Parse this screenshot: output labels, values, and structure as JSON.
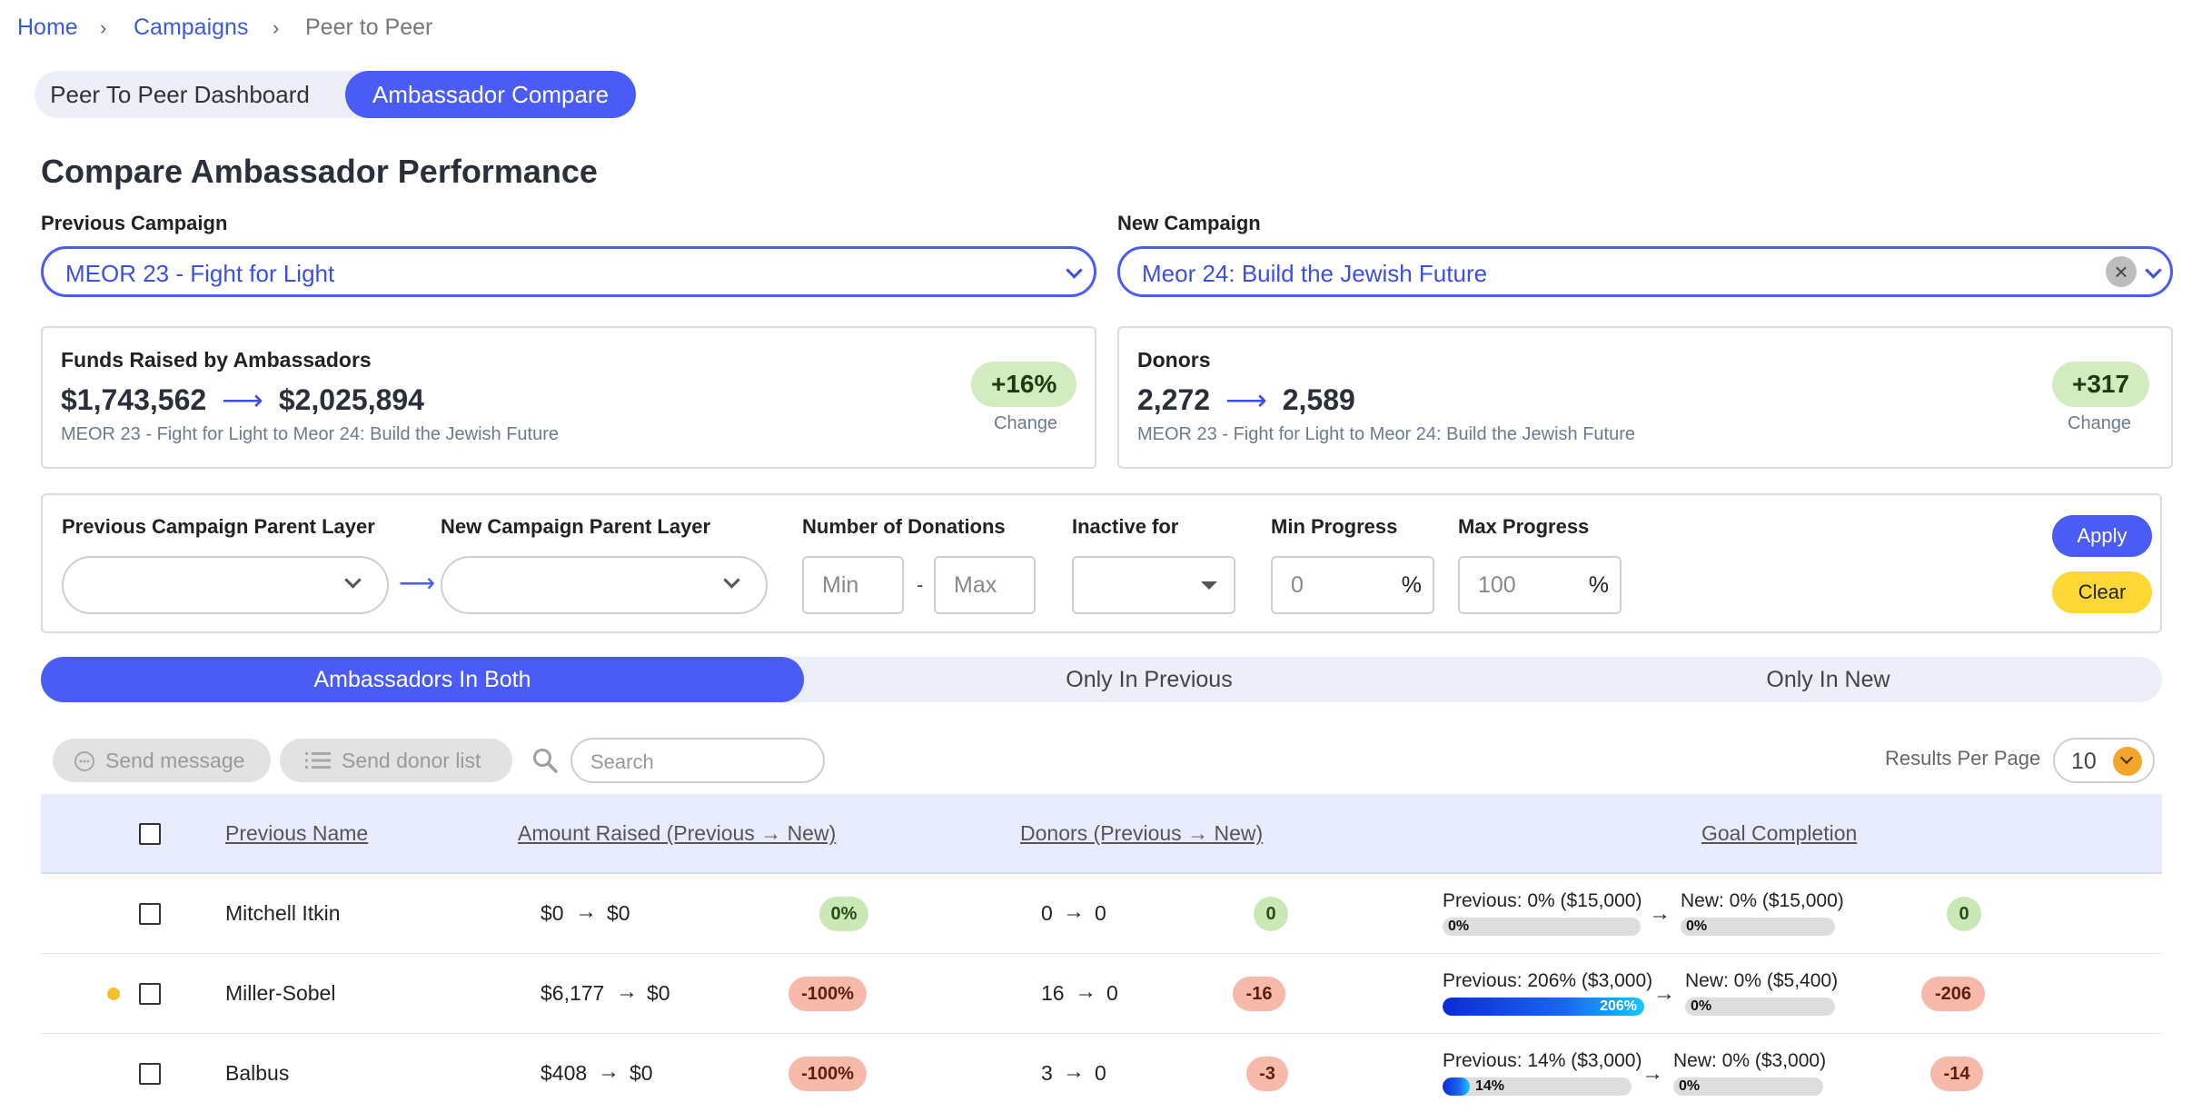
{
  "breadcrumb": {
    "home": "Home",
    "campaigns": "Campaigns",
    "current": "Peer to Peer",
    "sep": "›"
  },
  "top_tabs": [
    {
      "label": "Peer To Peer Dashboard"
    },
    {
      "label": "Ambassador Compare"
    }
  ],
  "page_title": "Compare Ambassador Performance",
  "campaigns": {
    "previous_label": "Previous Campaign",
    "previous_value": "MEOR 23 - Fight for Light",
    "new_label": "New Campaign",
    "new_value": "Meor 24: Build the Jewish Future",
    "clear_glyph": "×"
  },
  "cards": {
    "funds": {
      "title": "Funds Raised by Ambassadors",
      "prev": "$1,743,562",
      "new": "$2,025,894",
      "arrow": "⟶",
      "sub": "MEOR 23 - Fight for Light to Meor 24: Build the Jewish Future",
      "badge": "+16%",
      "change_label": "Change"
    },
    "donors": {
      "title": "Donors",
      "prev": "2,272",
      "new": "2,589",
      "arrow": "⟶",
      "sub": "MEOR 23 - Fight for Light to Meor 24: Build the Jewish Future",
      "badge": "+317",
      "change_label": "Change"
    }
  },
  "filters": {
    "prev_parent_label": "Previous Campaign Parent Layer",
    "new_parent_label": "New Campaign Parent Layer",
    "layer_arrow": "⟶",
    "donations_label": "Number of Donations",
    "min_placeholder": "Min",
    "max_placeholder": "Max",
    "dash": "-",
    "inactive_label": "Inactive for",
    "min_progress_label": "Min Progress",
    "min_progress_placeholder": "0",
    "max_progress_label": "Max Progress",
    "max_progress_placeholder": "100",
    "pct": "%",
    "apply": "Apply",
    "clear": "Clear"
  },
  "segment_tabs": [
    {
      "label": "Ambassadors In Both"
    },
    {
      "label": "Only In Previous"
    },
    {
      "label": "Only In New"
    }
  ],
  "toolbar": {
    "send_message": "Send message",
    "send_donor_list": "Send donor list",
    "search_placeholder": "Search",
    "results_per_page_label": "Results Per Page",
    "results_per_page_value": "10"
  },
  "table": {
    "headers": {
      "name": "Previous Name",
      "amount": "Amount Raised (Previous → New)",
      "donors": "Donors (Previous → New)",
      "goal": "Goal Completion"
    },
    "arrow": "→",
    "rows": [
      {
        "name": "Mitchell Itkin",
        "warning": false,
        "amount_prev": "$0",
        "amount_new": "$0",
        "amount_change": "0%",
        "amount_status": "green",
        "donors_prev": "0",
        "donors_new": "0",
        "donors_change": "0",
        "donors_status": "green",
        "goal_prev_text": "Previous: 0% ($15,000)",
        "goal_prev_pct": 0,
        "goal_prev_label": "0%",
        "goal_new_text": "New: 0% ($15,000)",
        "goal_new_pct": 0,
        "goal_new_label": "0%",
        "goal_change": "0",
        "goal_status": "green"
      },
      {
        "name": "Miller-Sobel",
        "warning": true,
        "amount_prev": "$6,177",
        "amount_new": "$0",
        "amount_change": "-100%",
        "amount_status": "red",
        "donors_prev": "16",
        "donors_new": "0",
        "donors_change": "-16",
        "donors_status": "red",
        "goal_prev_text": "Previous: 206% ($3,000)",
        "goal_prev_pct": 206,
        "goal_prev_label": "206%",
        "goal_new_text": "New: 0% ($5,400)",
        "goal_new_pct": 0,
        "goal_new_label": "0%",
        "goal_change": "-206",
        "goal_status": "red"
      },
      {
        "name": "Balbus",
        "warning": false,
        "amount_prev": "$408",
        "amount_new": "$0",
        "amount_change": "-100%",
        "amount_status": "red",
        "donors_prev": "3",
        "donors_new": "0",
        "donors_change": "-3",
        "donors_status": "red",
        "goal_prev_text": "Previous: 14% ($3,000)",
        "goal_prev_pct": 14,
        "goal_prev_label": "14%",
        "goal_new_text": "New: 0% ($3,000)",
        "goal_new_pct": 0,
        "goal_new_label": "0%",
        "goal_change": "-14",
        "goal_status": "red"
      }
    ]
  },
  "colors": {
    "accent": "#4a5cf5",
    "clear_button": "#fdd835",
    "positive_badge": "#c9e8b4",
    "negative_badge": "#f7b9a9",
    "progress_fill": "#1a66f0"
  },
  "icons": {
    "message": "message-icon",
    "list": "list-icon",
    "search": "search-icon",
    "chevron": "chevron-down-icon",
    "warning": "warning-dot-icon"
  }
}
